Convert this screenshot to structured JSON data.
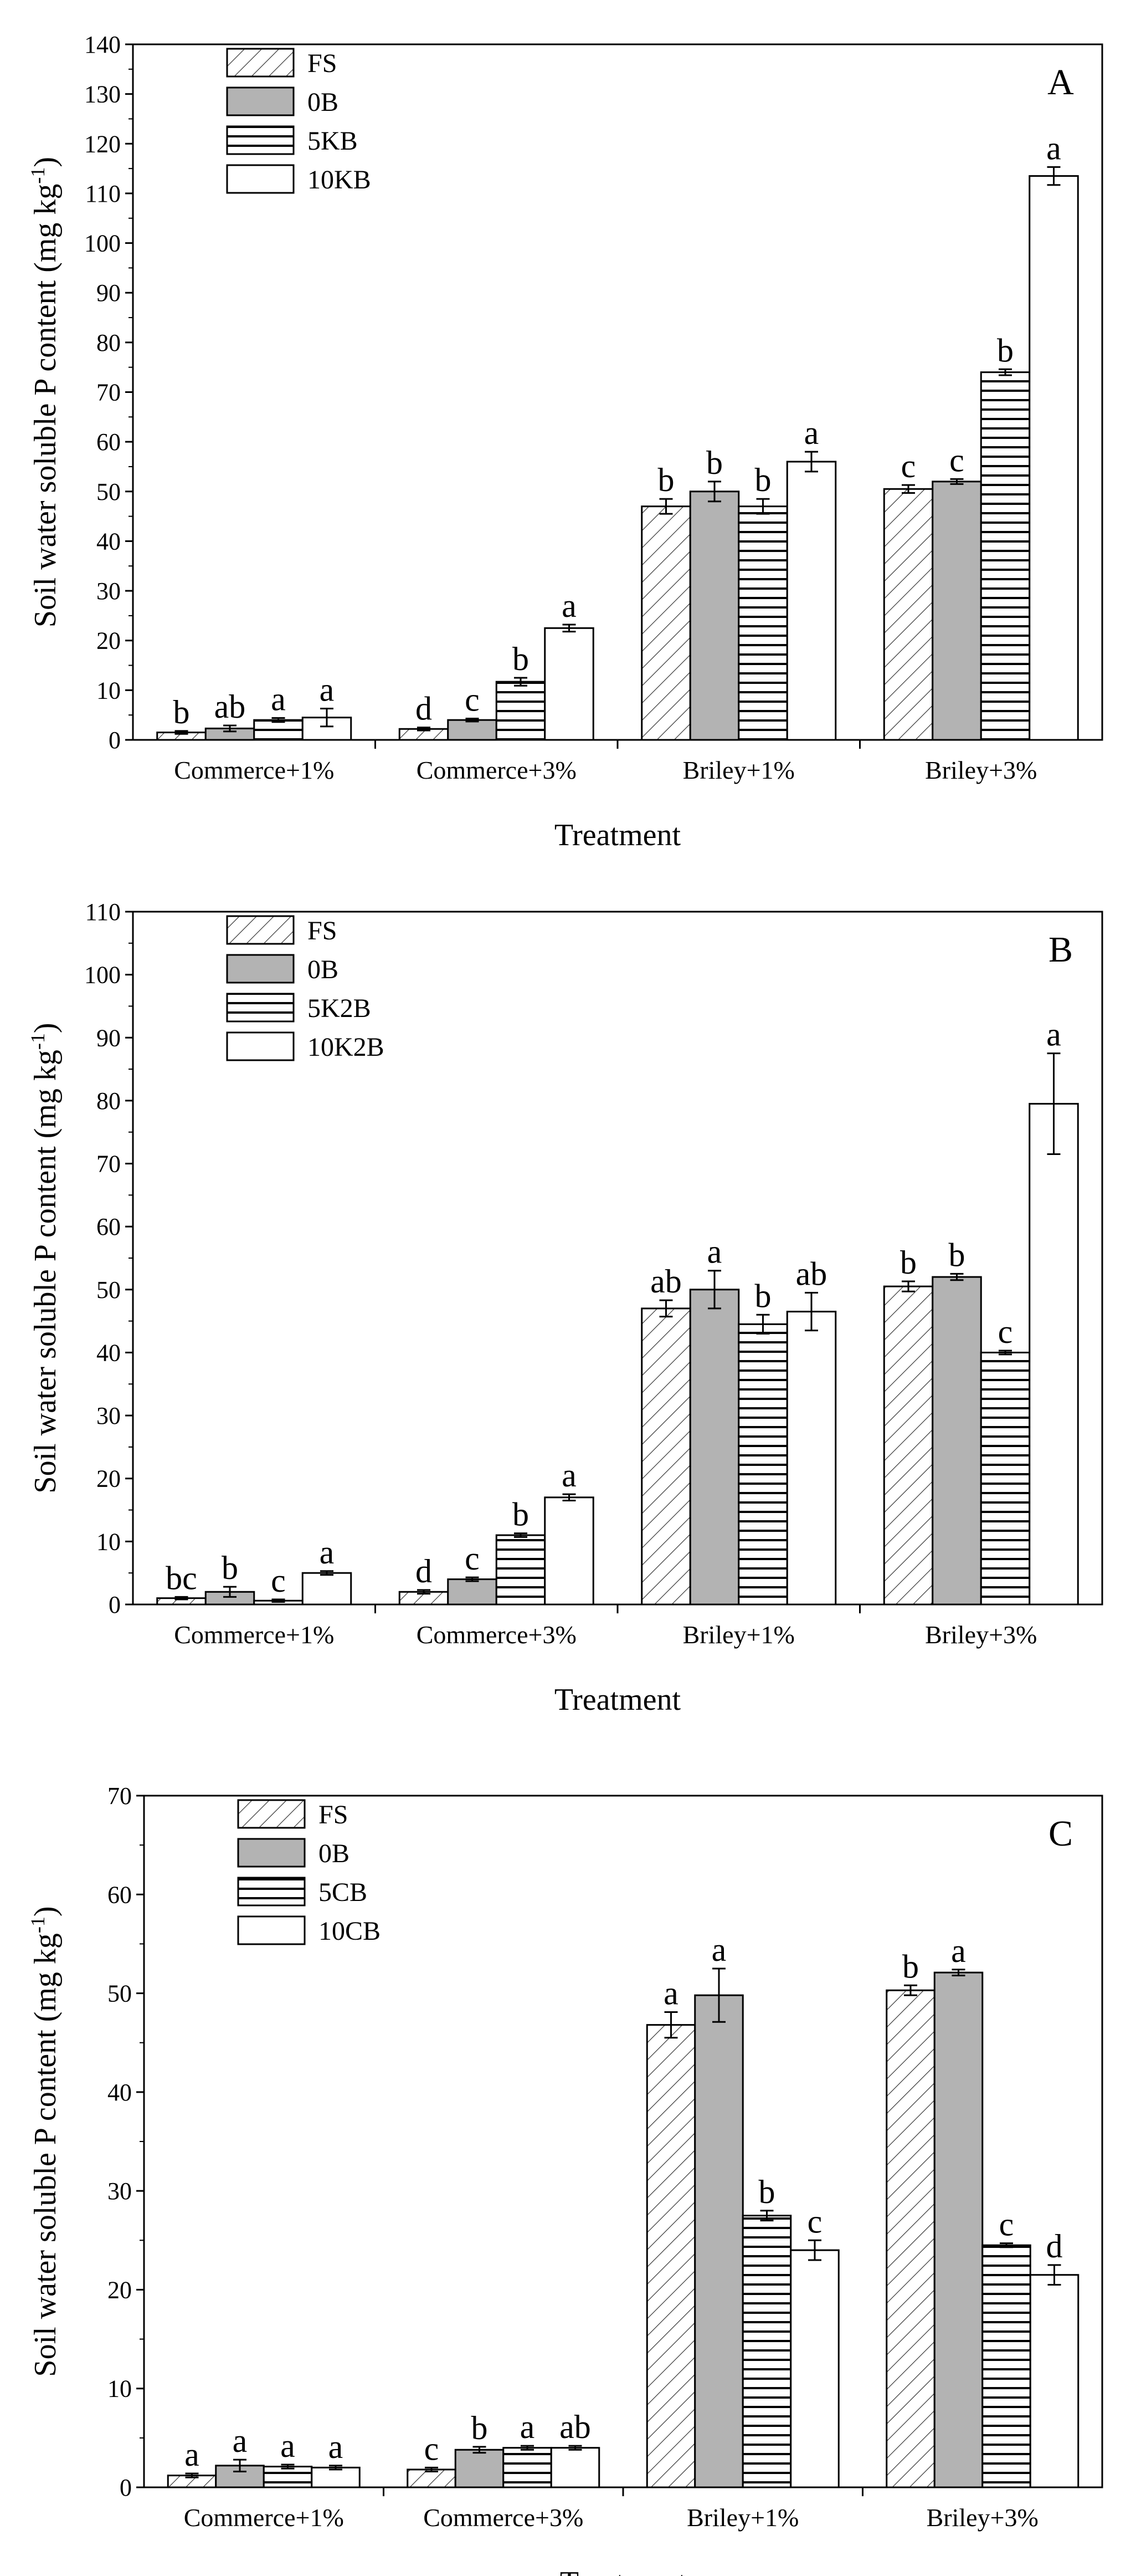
{
  "chart_data": [
    {
      "type": "bar",
      "panel_label": "A",
      "ylabel": "Soil water soluble P content (mg kg",
      "ylabel_sup": "-1",
      "ylabel_close": ")",
      "xlabel": "Treatment",
      "ylim": [
        0,
        140
      ],
      "ytick_step": 10,
      "categories": [
        "Commerce+1%",
        "Commerce+3%",
        "Briley+1%",
        "Briley+3%"
      ],
      "legend_position": "top-left",
      "series": [
        {
          "name": "FS",
          "pattern": "diag",
          "values": [
            1.5,
            2.2,
            47,
            50.5
          ],
          "errors": [
            0.3,
            0.3,
            1.5,
            0.8
          ],
          "letters": [
            "b",
            "d",
            "b",
            "c"
          ]
        },
        {
          "name": "0B",
          "pattern": "gray",
          "values": [
            2.3,
            4.0,
            50,
            52
          ],
          "errors": [
            0.6,
            0.3,
            2.0,
            0.5
          ],
          "letters": [
            "ab",
            "c",
            "b",
            "c"
          ]
        },
        {
          "name": "5KB",
          "pattern": "hlines",
          "values": [
            4.0,
            11.7,
            47,
            74
          ],
          "errors": [
            0.4,
            0.8,
            1.5,
            0.6
          ],
          "letters": [
            "a",
            "b",
            "b",
            "b"
          ]
        },
        {
          "name": "10KB",
          "pattern": "white",
          "values": [
            4.5,
            22.5,
            56,
            113.5
          ],
          "errors": [
            1.8,
            0.7,
            2.0,
            1.8
          ],
          "letters": [
            "a",
            "a",
            "a",
            "a"
          ]
        }
      ]
    },
    {
      "type": "bar",
      "panel_label": "B",
      "ylabel": "Soil water soluble P content (mg kg",
      "ylabel_sup": "-1",
      "ylabel_close": ")",
      "xlabel": "Treatment",
      "ylim": [
        0,
        110
      ],
      "ytick_step": 10,
      "categories": [
        "Commerce+1%",
        "Commerce+3%",
        "Briley+1%",
        "Briley+3%"
      ],
      "legend_position": "top-left",
      "series": [
        {
          "name": "FS",
          "pattern": "diag",
          "values": [
            1.0,
            2.0,
            47,
            50.5
          ],
          "errors": [
            0.2,
            0.3,
            1.3,
            0.8
          ],
          "letters": [
            "bc",
            "d",
            "ab",
            "b"
          ]
        },
        {
          "name": "0B",
          "pattern": "gray",
          "values": [
            2.0,
            4.0,
            50,
            52
          ],
          "errors": [
            0.8,
            0.3,
            3.0,
            0.5
          ],
          "letters": [
            "b",
            "c",
            "a",
            "b"
          ]
        },
        {
          "name": "5K2B",
          "pattern": "hlines",
          "values": [
            0.6,
            11.0,
            44.5,
            40
          ],
          "errors": [
            0.2,
            0.3,
            1.5,
            0.3
          ],
          "letters": [
            "c",
            "b",
            "b",
            "c"
          ]
        },
        {
          "name": "10K2B",
          "pattern": "white",
          "values": [
            5.0,
            17.0,
            46.5,
            79.5
          ],
          "errors": [
            0.3,
            0.5,
            3.0,
            8.0
          ],
          "letters": [
            "a",
            "a",
            "ab",
            "a"
          ]
        }
      ]
    },
    {
      "type": "bar",
      "panel_label": "C",
      "ylabel": "Soil water soluble P content (mg kg",
      "ylabel_sup": "-1",
      "ylabel_close": ")",
      "xlabel": "Treatment",
      "ylim": [
        0,
        70
      ],
      "ytick_step": 10,
      "categories": [
        "Commerce+1%",
        "Commerce+3%",
        "Briley+1%",
        "Briley+3%"
      ],
      "legend_position": "top-left",
      "series": [
        {
          "name": "FS",
          "pattern": "diag",
          "values": [
            1.2,
            1.8,
            46.8,
            50.3
          ],
          "errors": [
            0.2,
            0.2,
            1.3,
            0.5
          ],
          "letters": [
            "a",
            "c",
            "a",
            "b"
          ]
        },
        {
          "name": "0B",
          "pattern": "gray",
          "values": [
            2.2,
            3.8,
            49.8,
            52.1
          ],
          "errors": [
            0.6,
            0.3,
            2.7,
            0.3
          ],
          "letters": [
            "a",
            "b",
            "a",
            "a"
          ]
        },
        {
          "name": "5CB",
          "pattern": "hlines",
          "values": [
            2.1,
            4.0,
            27.5,
            24.5
          ],
          "errors": [
            0.2,
            0.2,
            0.5,
            0.2
          ],
          "letters": [
            "a",
            "a",
            "b",
            "c"
          ]
        },
        {
          "name": "10CB",
          "pattern": "white",
          "values": [
            2.0,
            4.0,
            24.0,
            21.5
          ],
          "errors": [
            0.2,
            0.2,
            1.0,
            1.0
          ],
          "letters": [
            "a",
            "ab",
            "c",
            "d"
          ]
        }
      ]
    }
  ]
}
